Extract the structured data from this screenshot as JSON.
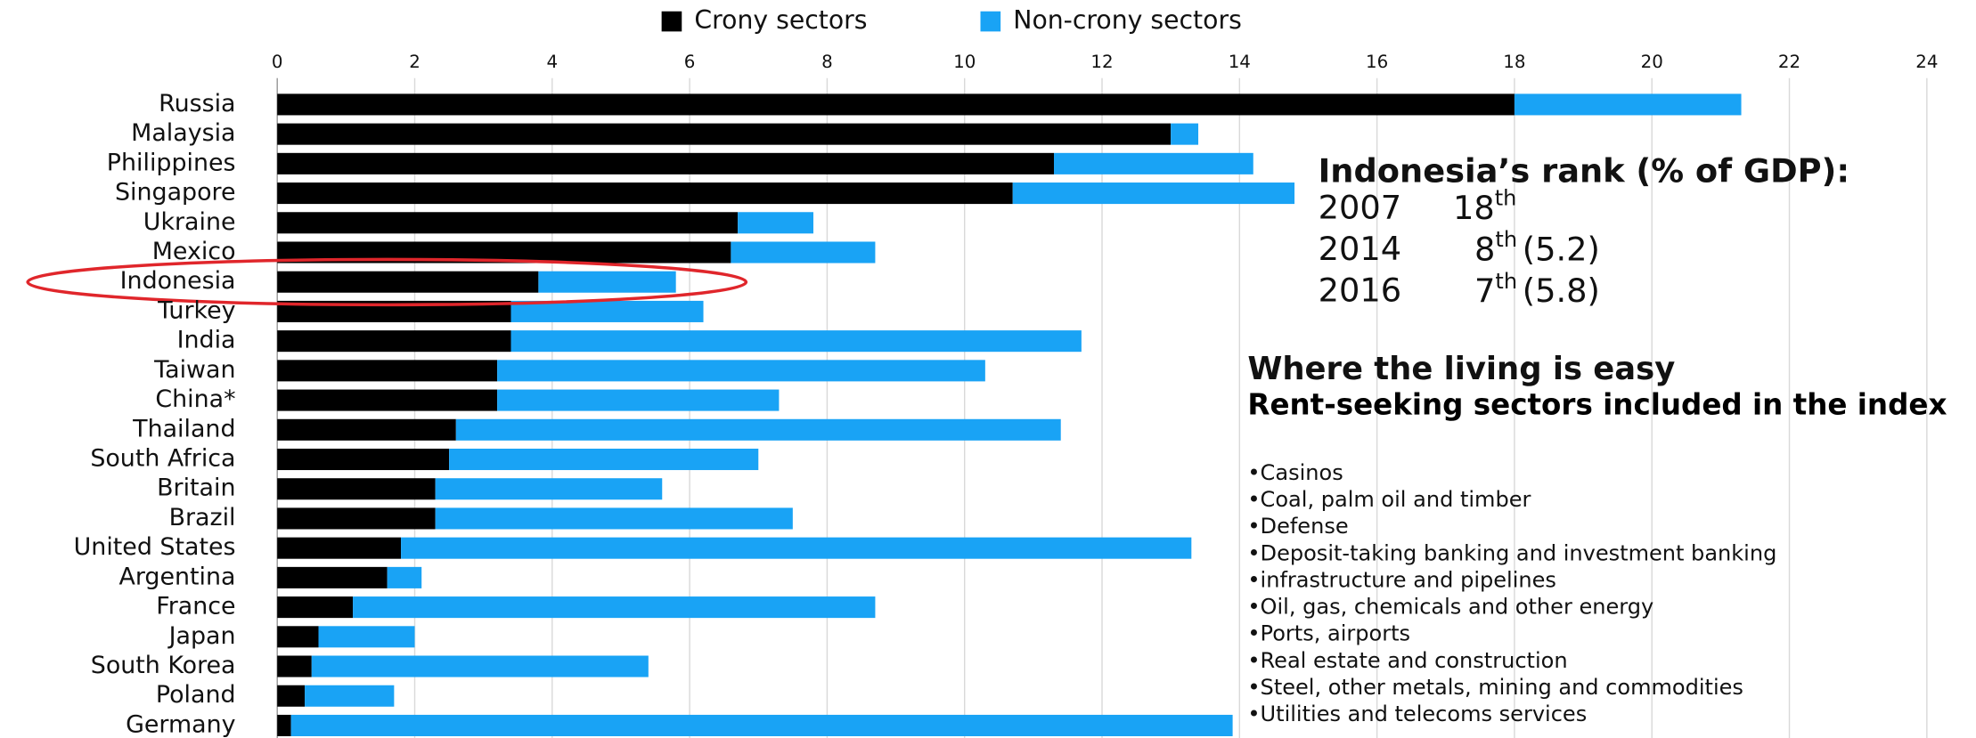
{
  "chart_data": {
    "type": "stacked_barh",
    "categories": [
      "Russia",
      "Malaysia",
      "Philippines",
      "Singapore",
      "Ukraine",
      "Mexico",
      "Indonesia",
      "Turkey",
      "India",
      "Taiwan",
      "China*",
      "Thailand",
      "South Africa",
      "Britain",
      "Brazil",
      "United States",
      "Argentina",
      "France",
      "Japan",
      "South Korea",
      "Poland",
      "Germany"
    ],
    "series": [
      {
        "name": "Crony sectors",
        "color": "#000000",
        "values": [
          18,
          13,
          11.3,
          10.7,
          6.7,
          6.6,
          3.8,
          3.4,
          3.4,
          3.2,
          3.2,
          2.6,
          2.5,
          2.3,
          2.3,
          1.8,
          1.6,
          1.1,
          0.6,
          0.5,
          0.4,
          0.2
        ]
      },
      {
        "name": "Non-crony sectors",
        "color": "#19a3f5",
        "values": [
          3.3,
          0.4,
          2.9,
          4.1,
          1.1,
          2.1,
          2.0,
          2.8,
          8.3,
          7.1,
          4.1,
          8.8,
          4.5,
          3.3,
          5.2,
          11.5,
          0.5,
          7.6,
          1.4,
          4.9,
          1.3,
          13.7
        ]
      }
    ],
    "xlim": [
      0,
      24
    ],
    "xticks": [
      0,
      2,
      4,
      6,
      8,
      10,
      12,
      14,
      16,
      18,
      20,
      22,
      24
    ],
    "grid": true,
    "legend": "top",
    "rank_box": {
      "title": "Indonesia’s rank (% of GDP):",
      "rows": [
        {
          "year": "2007",
          "rank": "18",
          "suffix": "th",
          "share": null
        },
        {
          "year": "2014",
          "rank": "8",
          "suffix": "th",
          "share": "(5.2)"
        },
        {
          "year": "2016",
          "rank": "7",
          "suffix": "th",
          "share": "(5.8)"
        }
      ]
    },
    "sectors_box": {
      "title": "Where the living is easy",
      "subtitle": "Rent-seeking sectors included in the index",
      "items": [
        "•Casinos",
        "•Coal, palm oil and timber",
        "•Defense",
        "•Deposit-taking banking and investment banking",
        "•infrastructure and pipelines",
        "•Oil, gas, chemicals and other energy",
        "•Ports, airports",
        "•Real estate and construction",
        "•Steel, other metals, mining and commodities",
        "•Utilities and telecoms services"
      ]
    }
  }
}
